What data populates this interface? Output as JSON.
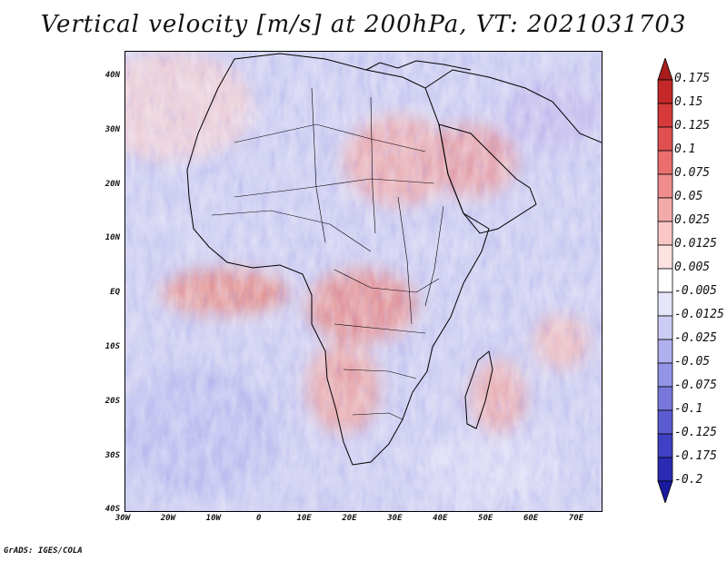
{
  "title": "Vertical velocity [m/s] at 200hPa, VT: 2021031703",
  "footer": "GrADS: IGES/COLA",
  "map": {
    "lon_range": [
      -30,
      75
    ],
    "lat_range": [
      -40,
      45
    ],
    "lat_ticks": [
      "40N",
      "30N",
      "20N",
      "10N",
      "EQ",
      "10S",
      "20S",
      "30S",
      "40S"
    ],
    "lon_ticks": [
      "30W",
      "20W",
      "10W",
      "0",
      "10E",
      "20E",
      "30E",
      "40E",
      "50E",
      "60E",
      "70E"
    ]
  },
  "colorbar": {
    "levels": [
      "0.175",
      "0.15",
      "0.125",
      "0.1",
      "0.075",
      "0.05",
      "0.025",
      "0.0125",
      "0.005",
      "-0.005",
      "-0.0125",
      "-0.025",
      "-0.05",
      "-0.075",
      "-0.1",
      "-0.125",
      "-0.175",
      "-0.2"
    ],
    "colors": [
      "#a81c1c",
      "#c42828",
      "#d63a3a",
      "#e05050",
      "#ea6e6e",
      "#f08c8c",
      "#f5aaaa",
      "#fac6c6",
      "#fde2e2",
      "#ffffff",
      "#e6e6fa",
      "#ccccf4",
      "#b0b0ee",
      "#9494e6",
      "#7878dc",
      "#5c5cd2",
      "#4040c4",
      "#2a2ab4",
      "#1a1aa0"
    ]
  }
}
